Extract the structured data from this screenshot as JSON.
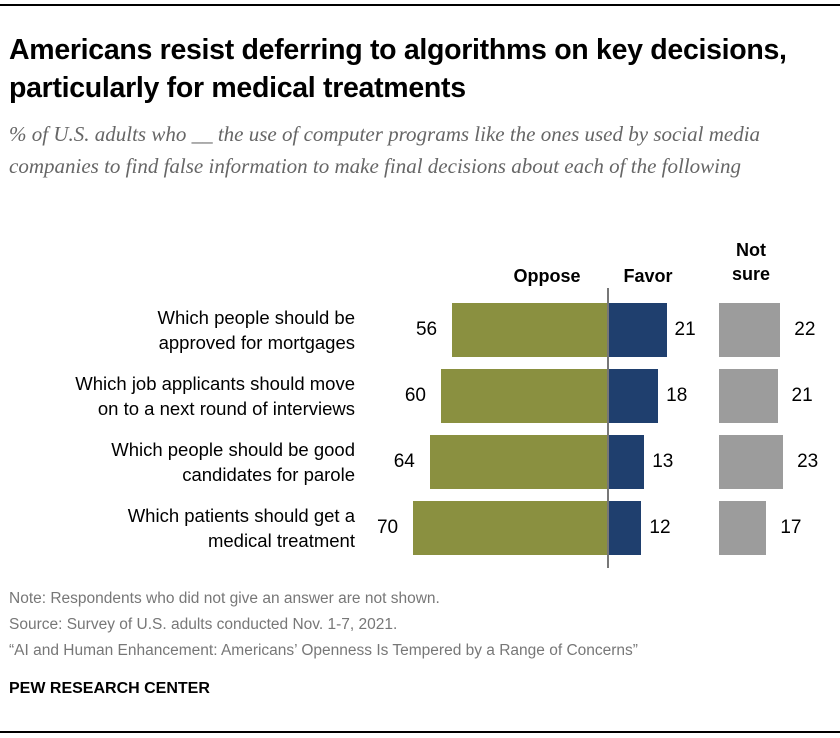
{
  "title": "Americans resist deferring to algorithms on key decisions, particularly for medical treatments",
  "subtitle": "% of U.S. adults who __ the use of computer programs like the ones used by social media companies to find false information to make final decisions about each of the following",
  "chart_data": {
    "type": "bar",
    "orientation": "horizontal-diverging",
    "categories": [
      "Which people should be approved for mortgages",
      "Which job applicants should move on to a next round of interviews",
      "Which people should be good candidates for parole",
      "Which patients should get a medical treatment"
    ],
    "category_lines": [
      [
        "Which people should be",
        "approved for mortgages"
      ],
      [
        "Which job applicants should move",
        "on to a next round of interviews"
      ],
      [
        "Which people should be good",
        "candidates for parole"
      ],
      [
        "Which patients should get a",
        "medical treatment"
      ]
    ],
    "series": [
      {
        "name": "Oppose",
        "values": [
          56,
          60,
          64,
          70
        ],
        "color": "#8a9040"
      },
      {
        "name": "Favor",
        "values": [
          21,
          18,
          13,
          12
        ],
        "color": "#1f3f6e"
      },
      {
        "name": "Not sure",
        "values": [
          22,
          21,
          23,
          17
        ],
        "color": "#9c9c9c"
      }
    ],
    "column_headers": {
      "oppose": "Oppose",
      "favor": "Favor",
      "not_sure": [
        "Not",
        "sure"
      ]
    },
    "axis_color": "#777777",
    "grid": false,
    "legend": "column headers above bars"
  },
  "footer": {
    "note": "Note: Respondents who did not give an answer are not shown.",
    "source": "Source: Survey of U.S. adults conducted Nov. 1-7, 2021.",
    "report": "“AI and Human Enhancement: Americans’ Openness Is Tempered by a Range of Concerns”",
    "brand": "PEW RESEARCH CENTER"
  }
}
